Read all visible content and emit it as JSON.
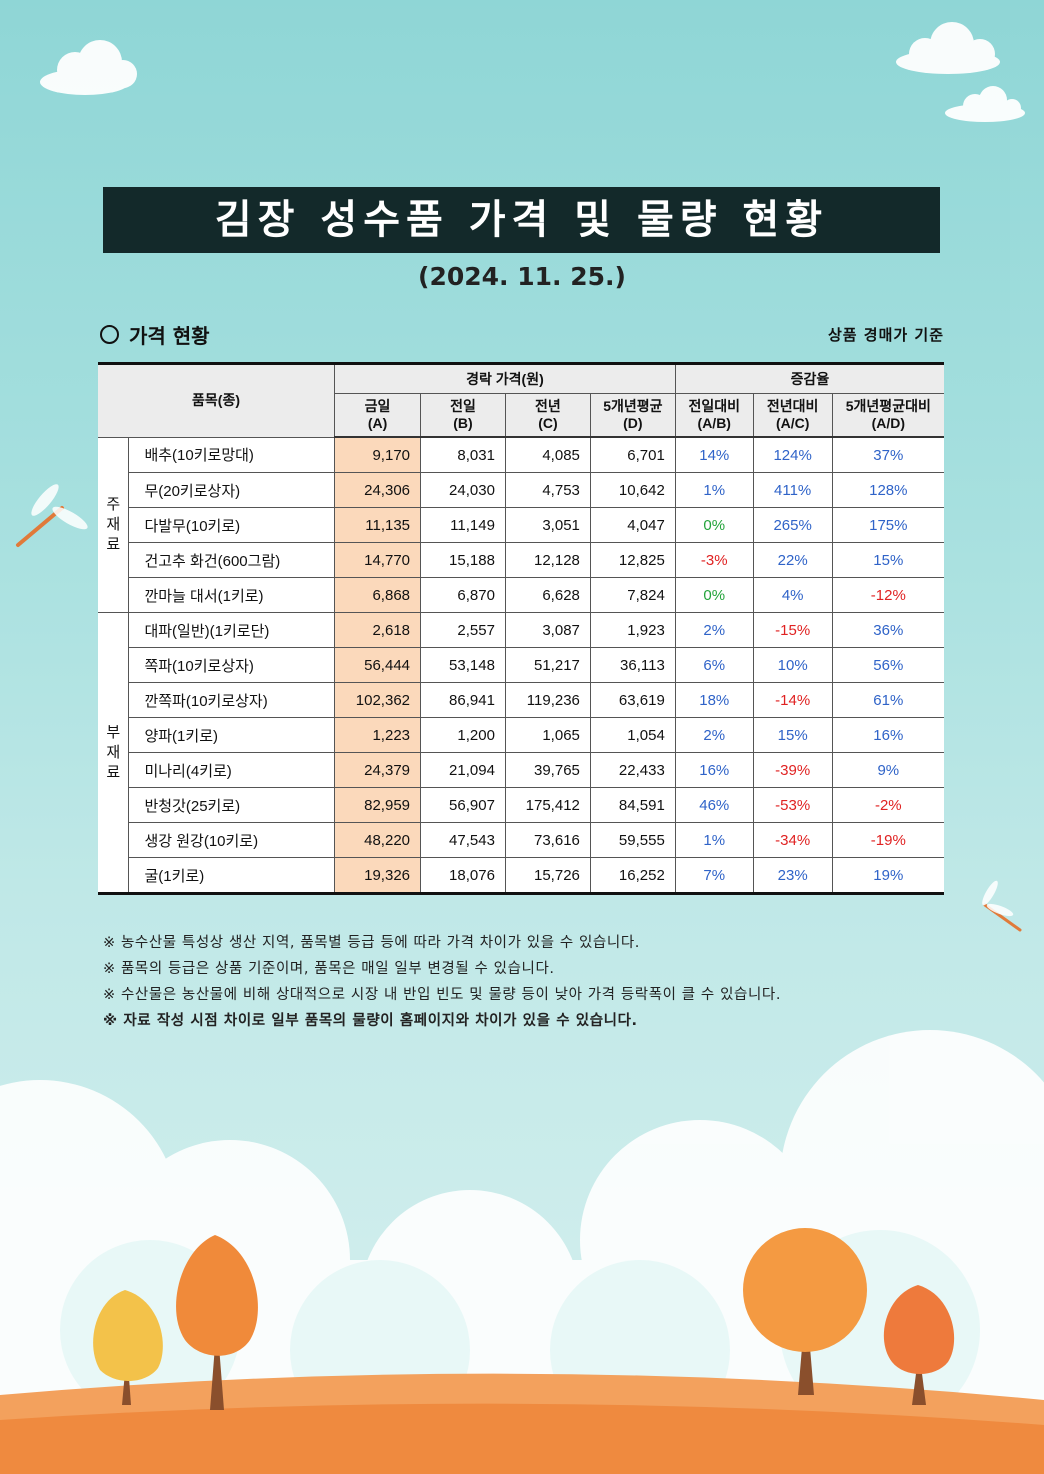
{
  "title": "김장 성수품 가격 및 물량 현황",
  "date": "(2024. 11. 25.)",
  "section_title": "가격 현황",
  "basis": "상품 경매가 기준",
  "table": {
    "item_header": "품목(종)",
    "price_group_header": "경락 가격(원)",
    "rate_group_header": "증감율",
    "price_cols": [
      {
        "line1": "금일",
        "line2": "(A)"
      },
      {
        "line1": "전일",
        "line2": "(B)"
      },
      {
        "line1": "전년",
        "line2": "(C)"
      },
      {
        "line1": "5개년평균",
        "line2": "(D)"
      }
    ],
    "rate_cols": [
      {
        "line1": "전일대비",
        "line2": "(A/B)"
      },
      {
        "line1": "전년대비",
        "line2": "(A/C)"
      },
      {
        "line1": "5개년평균대비",
        "line2": "(A/D)"
      }
    ],
    "categories": [
      {
        "label": "주\n재\n료",
        "rows": [
          {
            "item": "배추(10키로망대)",
            "a": "9,170",
            "b": "8,031",
            "c": "4,085",
            "d": "6,701",
            "ab": "14%",
            "ac": "124%",
            "ad": "37%"
          },
          {
            "item": "무(20키로상자)",
            "a": "24,306",
            "b": "24,030",
            "c": "4,753",
            "d": "10,642",
            "ab": "1%",
            "ac": "411%",
            "ad": "128%"
          },
          {
            "item": "다발무(10키로)",
            "a": "11,135",
            "b": "11,149",
            "c": "3,051",
            "d": "4,047",
            "ab": "0%",
            "ac": "265%",
            "ad": "175%"
          },
          {
            "item": "건고추 화건(600그람)",
            "a": "14,770",
            "b": "15,188",
            "c": "12,128",
            "d": "12,825",
            "ab": "-3%",
            "ac": "22%",
            "ad": "15%"
          },
          {
            "item": "깐마늘 대서(1키로)",
            "a": "6,868",
            "b": "6,870",
            "c": "6,628",
            "d": "7,824",
            "ab": "0%",
            "ac": "4%",
            "ad": "-12%"
          }
        ]
      },
      {
        "label": "부\n재\n료",
        "rows": [
          {
            "item": "대파(일반)(1키로단)",
            "a": "2,618",
            "b": "2,557",
            "c": "3,087",
            "d": "1,923",
            "ab": "2%",
            "ac": "-15%",
            "ad": "36%"
          },
          {
            "item": "쪽파(10키로상자)",
            "a": "56,444",
            "b": "53,148",
            "c": "51,217",
            "d": "36,113",
            "ab": "6%",
            "ac": "10%",
            "ad": "56%"
          },
          {
            "item": "깐쪽파(10키로상자)",
            "a": "102,362",
            "b": "86,941",
            "c": "119,236",
            "d": "63,619",
            "ab": "18%",
            "ac": "-14%",
            "ad": "61%"
          },
          {
            "item": "양파(1키로)",
            "a": "1,223",
            "b": "1,200",
            "c": "1,065",
            "d": "1,054",
            "ab": "2%",
            "ac": "15%",
            "ad": "16%"
          },
          {
            "item": "미나리(4키로)",
            "a": "24,379",
            "b": "21,094",
            "c": "39,765",
            "d": "22,433",
            "ab": "16%",
            "ac": "-39%",
            "ad": "9%"
          },
          {
            "item": "반청갓(25키로)",
            "a": "82,959",
            "b": "56,907",
            "c": "175,412",
            "d": "84,591",
            "ab": "46%",
            "ac": "-53%",
            "ad": "-2%"
          },
          {
            "item": "생강 원강(10키로)",
            "a": "48,220",
            "b": "47,543",
            "c": "73,616",
            "d": "59,555",
            "ab": "1%",
            "ac": "-34%",
            "ad": "-19%"
          },
          {
            "item": "굴(1키로)",
            "a": "19,326",
            "b": "18,076",
            "c": "15,726",
            "d": "16,252",
            "ab": "7%",
            "ac": "23%",
            "ad": "19%"
          }
        ]
      }
    ]
  },
  "notes": [
    {
      "text": "※ 농수산물 특성상 생산 지역, 품목별 등급 등에 따라 가격 차이가 있을 수 있습니다.",
      "bold": false
    },
    {
      "text": "※ 품목의 등급은 상품 기준이며, 품목은 매일 일부 변경될 수 있습니다.",
      "bold": false
    },
    {
      "text": "※ 수산물은 농산물에 비해 상대적으로 시장 내 반입 빈도 및 물량 등이 낮아 가격 등락폭이 클 수 있습니다.",
      "bold": false
    },
    {
      "text": "※ 자료 작성 시점 차이로 일부 품목의 물량이 홈페이지와 차이가 있을 수 있습니다.",
      "bold": true
    }
  ],
  "colors": {
    "positive": "#2f63c8",
    "negative": "#e02222",
    "zero": "#22a33a",
    "today_highlight": "#fbd9bb",
    "title_bar": "#13292a"
  }
}
